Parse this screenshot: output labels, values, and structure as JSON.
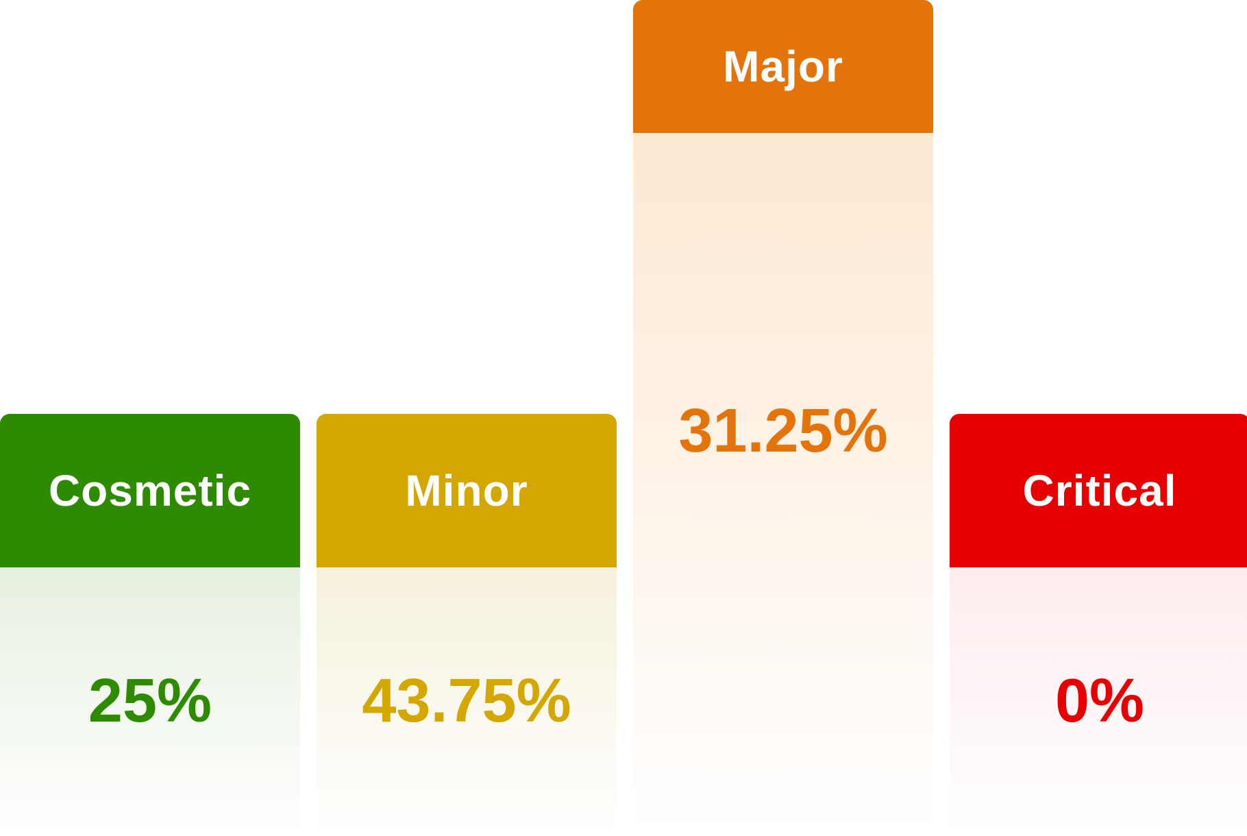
{
  "chart_data": {
    "type": "bar",
    "categories": [
      "Cosmetic",
      "Minor",
      "Major",
      "Critical"
    ],
    "values": [
      25,
      43.75,
      31.25,
      0
    ],
    "value_labels": [
      "25%",
      "43.75%",
      "31.25%",
      "0%"
    ],
    "emphasized": "Major",
    "colors": [
      "#2e8b00",
      "#d4a600",
      "#e3730b",
      "#e60000"
    ],
    "tints": [
      "#e6f0e0",
      "#f6f1dc",
      "#fde8d2",
      "#fdecee"
    ],
    "title": "",
    "xlabel": "",
    "ylabel": "",
    "ylim": [
      0,
      100
    ]
  }
}
